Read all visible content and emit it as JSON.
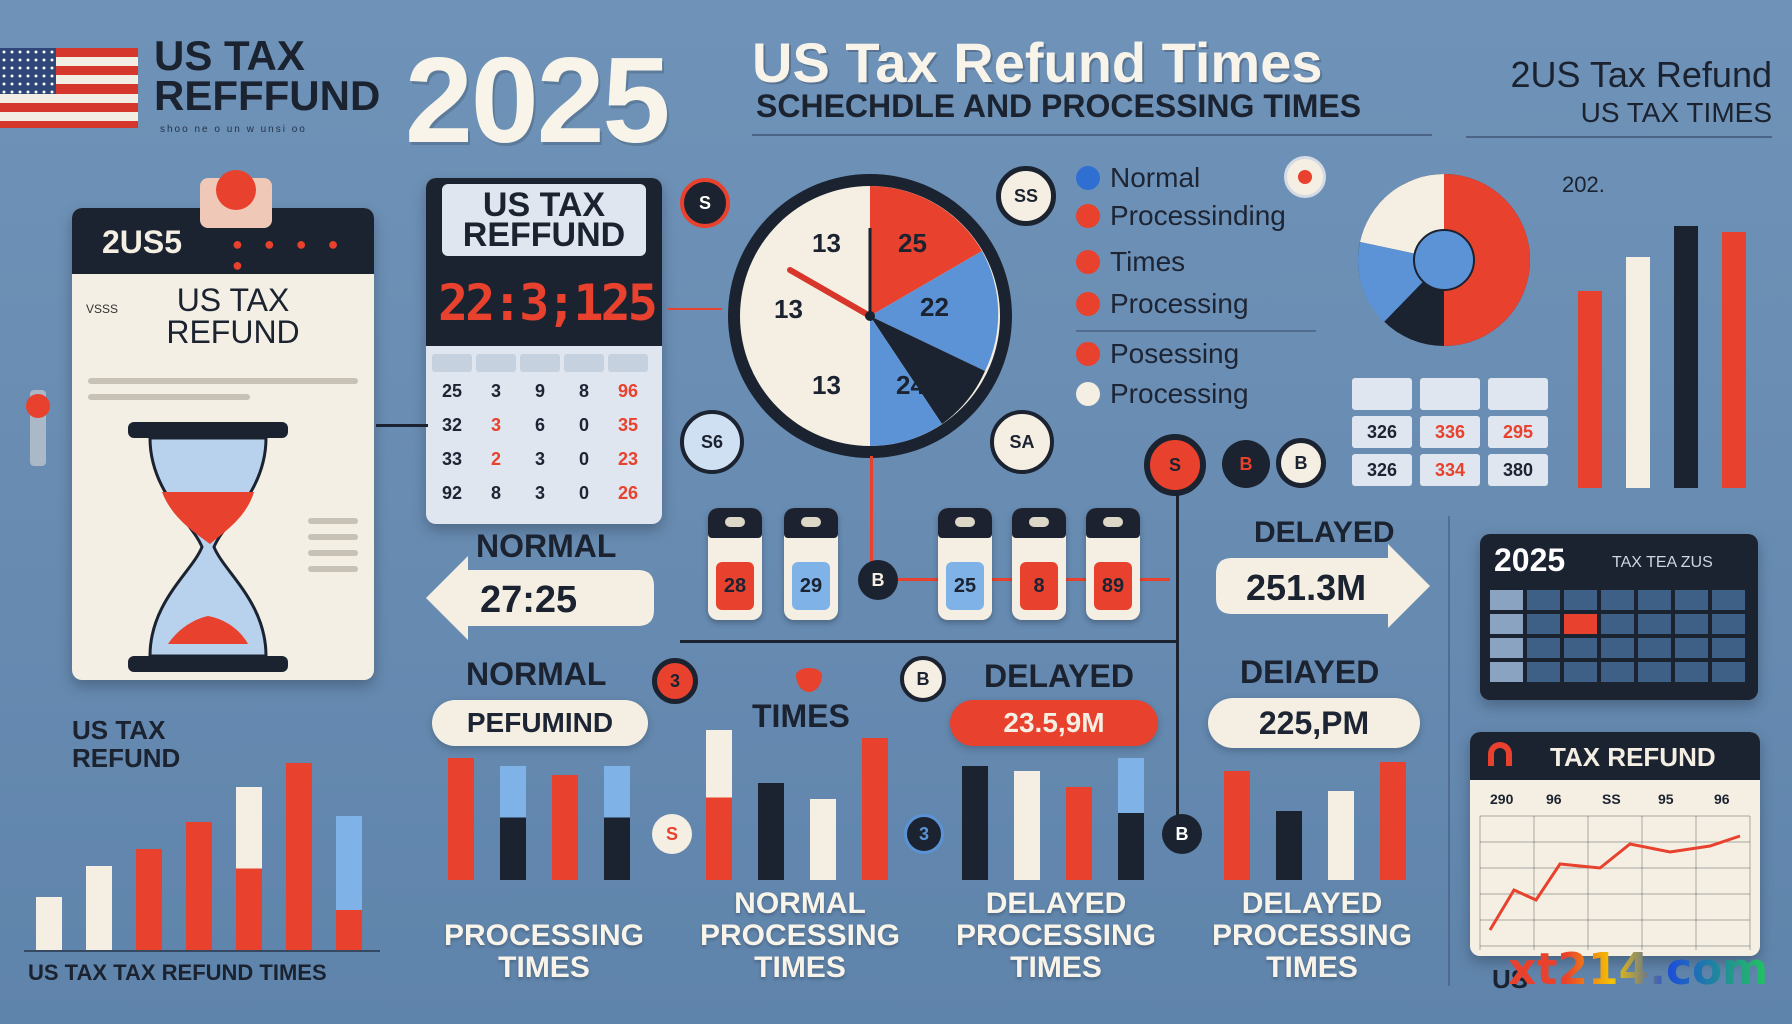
{
  "header": {
    "left_title_line1": "US TAX",
    "left_title_line2": "REFFFUND",
    "left_subtitle": "shoo ne o un w unsi oo",
    "year": "2025",
    "main_title": "US Tax Refund Times",
    "main_subtitle": "SCHECHDLE AND PROCESSING TIMES",
    "right_title_line1": "2US Tax Refund",
    "right_title_line2": "US TAX   TIMES"
  },
  "clipboard": {
    "badge": "2US5",
    "title_line1": "US  TAX",
    "title_line2": "REFUND",
    "side_label": "VSSS"
  },
  "calendar": {
    "title_line1": "US  TAX",
    "title_line2": "REFFUND",
    "display": "22:3;125",
    "headers": [
      "",
      "",
      "",
      "",
      ""
    ],
    "rows": [
      [
        "25",
        "3",
        "9",
        "8",
        "96"
      ],
      [
        "32",
        "3",
        "6",
        "0",
        "35"
      ],
      [
        "33",
        "2",
        "3",
        "0",
        "23"
      ],
      [
        "92",
        "8",
        "3",
        "0",
        "26"
      ]
    ],
    "red_cells": [
      [
        0,
        4
      ],
      [
        1,
        1
      ],
      [
        1,
        4
      ],
      [
        2,
        1
      ],
      [
        2,
        4
      ],
      [
        3,
        4
      ]
    ]
  },
  "clock": {
    "labels": [
      "13",
      "25",
      "13",
      "22",
      "13",
      "24"
    ],
    "badge_top": "S",
    "badge_right": "SS",
    "badge_left": "S6",
    "badge_bottom_right": "SA"
  },
  "legend": {
    "items": [
      {
        "label": "Normal",
        "color": "#2f6fd1"
      },
      {
        "label": "Processinding",
        "color": "#e8412d"
      },
      {
        "label": "Times",
        "color": "#e8412d"
      },
      {
        "label": "Processing",
        "color": "#e8412d"
      },
      {
        "label": "Posessing",
        "color": "#e8412d"
      },
      {
        "label": "Processing",
        "color": "#f4efe2"
      }
    ]
  },
  "pie_mini": {
    "year_label": "202."
  },
  "mini_table": {
    "rows": [
      [
        "",
        "",
        ""
      ],
      [
        "326",
        "336",
        "295"
      ],
      [
        "326",
        "334",
        "380"
      ]
    ]
  },
  "arrows": {
    "normal_label": "NORMAL",
    "normal_value": "27:25",
    "delayed_label": "DELAYED",
    "delayed_value": "251.3M"
  },
  "vials": {
    "values": [
      "28",
      "29",
      "25",
      "8",
      "89"
    ]
  },
  "timeline_badges": [
    "S",
    "B",
    "B",
    "3",
    "B",
    "S",
    "3",
    "B",
    "B"
  ],
  "mid_labels": {
    "normal_label": "NORMAL",
    "normal_pill": "PEFUMIND",
    "times_label": "TIMES",
    "delayed_label1": "DELAYED",
    "delayed_pill1": "23.5,9M",
    "delayed_label2": "DEIAYED",
    "delayed_pill2": "225,PM"
  },
  "bottom_groups": [
    {
      "line1": "",
      "line2": "PROCESSING",
      "line3": "TIMES"
    },
    {
      "line1": "NORMAL",
      "line2": "PROCESSING",
      "line3": "TIMES"
    },
    {
      "line1": "DELAYED",
      "line2": "PROCESSING",
      "line3": "TIMES"
    },
    {
      "line1": "DELAYED",
      "line2": "PROCESSING",
      "line3": "TIMES"
    }
  ],
  "left_chart": {
    "title_line1": "US TAX",
    "title_line2": "REFUND",
    "footer": "US  TAX  TAX REFUND TIMES"
  },
  "right_panel": {
    "card_year": "2025",
    "card_title": "TAX  TEA ZUS",
    "chart_title": "TAX REFUND",
    "chart_headers": [
      "290",
      "96",
      "SS",
      "95",
      "96"
    ],
    "footer": "US"
  },
  "colors": {
    "red": "#e8412d",
    "navy": "#1b2230",
    "cream": "#f4efe2",
    "blue": "#5b93d6",
    "background": "#6a8db3"
  },
  "watermark": "xt214.com"
}
